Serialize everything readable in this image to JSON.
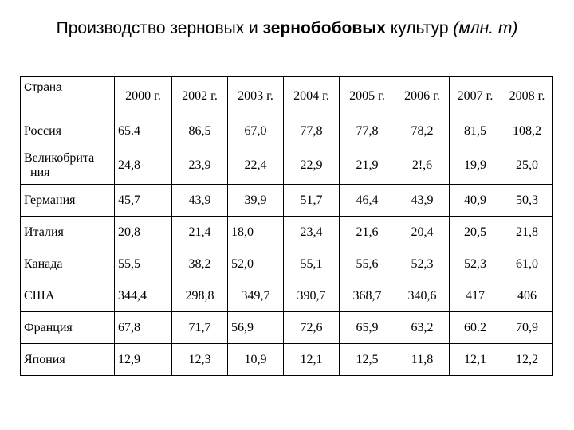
{
  "title": {
    "part1": "Производство зерновых и ",
    "part2": "зернобобовых",
    "part3": " культур ",
    "part4": "(млн. т)"
  },
  "table": {
    "header_country": "Страна",
    "years": [
      "2000 г.",
      "2002 г.",
      "2003 г.",
      "2004 г.",
      "2005 г.",
      "2006 г.",
      "2007 г.",
      "2008 г."
    ],
    "rows": [
      {
        "country": "Россия",
        "values": [
          "65.4",
          "86,5",
          "67,0",
          "77,8",
          "77,8",
          "78,2",
          "81,5",
          "108,2"
        ]
      },
      {
        "country_line1": "Великобрита",
        "country_line2": "ния",
        "values": [
          "24,8",
          "23,9",
          "22,4",
          "22,9",
          "21,9",
          "2!,6",
          "19,9",
          "25,0"
        ]
      },
      {
        "country": "Германия",
        "values": [
          "45,7",
          "43,9",
          "39,9",
          "51,7",
          "46,4",
          "43,9",
          "40,9",
          "50,3"
        ]
      },
      {
        "country": "Италия",
        "values": [
          "20,8",
          "21,4",
          "18,0",
          "23,4",
          "21,6",
          "20,4",
          "20,5",
          "21,8"
        ]
      },
      {
        "country": "Канада",
        "values": [
          "55,5",
          "38,2",
          "52,0",
          "55,1",
          "55,6",
          "52,3",
          "52,3",
          "61,0"
        ]
      },
      {
        "country": "США",
        "values": [
          "344,4",
          "298,8",
          "349,7",
          "390,7",
          "368,7",
          "340,6",
          "417",
          "406"
        ]
      },
      {
        "country": "Франция",
        "values": [
          "67,8",
          "71,7",
          "56,9",
          "72,6",
          "65,9",
          "63,2",
          "60.2",
          "70,9"
        ]
      },
      {
        "country": "Япония",
        "values": [
          "12,9",
          "12,3",
          "10,9",
          "12,1",
          "12,5",
          "11,8",
          "12,1",
          "12,2"
        ]
      }
    ]
  }
}
